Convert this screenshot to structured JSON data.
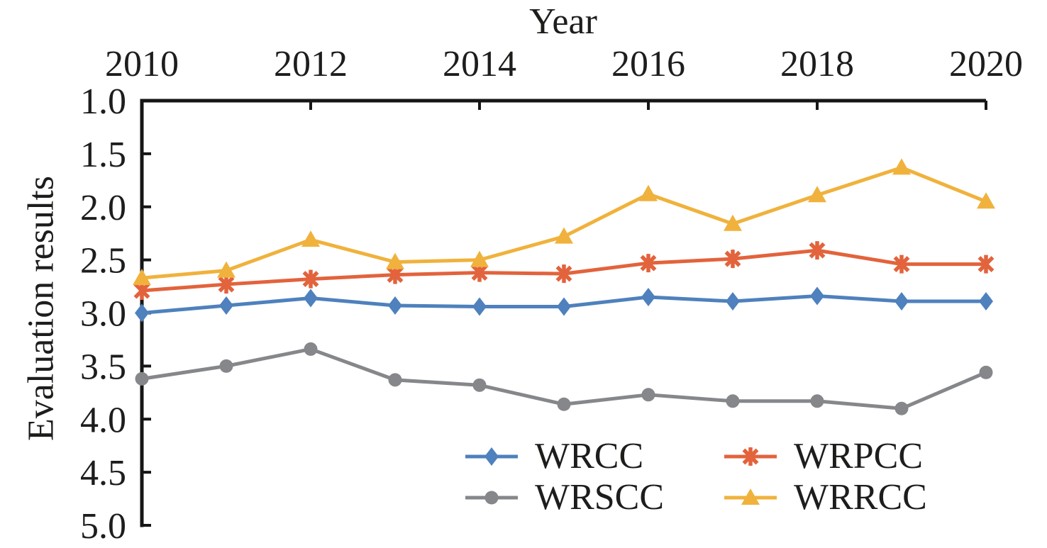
{
  "chart_data": {
    "type": "line",
    "title": "Year",
    "xlabel": "Year",
    "ylabel": "Evaluation results",
    "x": [
      2010,
      2011,
      2012,
      2013,
      2014,
      2015,
      2016,
      2017,
      2018,
      2019,
      2020
    ],
    "xlim": [
      2010,
      2020
    ],
    "x_tick_values": [
      2010,
      2012,
      2014,
      2016,
      2018,
      2020
    ],
    "x_tick_labels": [
      "2010",
      "2012",
      "2014",
      "2016",
      "2018",
      "2020"
    ],
    "x_axis_position": "top",
    "ylim": [
      1.0,
      5.0
    ],
    "y_axis_inverted": true,
    "y_tick_values": [
      1.0,
      1.5,
      2.0,
      2.5,
      3.0,
      3.5,
      4.0,
      4.5,
      5.0
    ],
    "y_tick_labels": [
      "1.0",
      "1.5",
      "2.0",
      "2.5",
      "3.0",
      "3.5",
      "4.0",
      "4.5",
      "5.0"
    ],
    "grid": false,
    "legend_position": "inside-bottom-center",
    "legend_rows": [
      [
        "WRCC",
        "WRPCC"
      ],
      [
        "WRSCC",
        "WRRCC"
      ]
    ],
    "series": [
      {
        "name": "WRCC",
        "color": "#4E81BD",
        "marker": "diamond",
        "values": [
          3.0,
          2.93,
          2.86,
          2.93,
          2.94,
          2.94,
          2.85,
          2.89,
          2.84,
          2.89,
          2.89
        ]
      },
      {
        "name": "WRPCC",
        "color": "#E2633C",
        "marker": "asterisk",
        "values": [
          2.79,
          2.73,
          2.68,
          2.64,
          2.62,
          2.63,
          2.53,
          2.49,
          2.41,
          2.54,
          2.54
        ]
      },
      {
        "name": "WRSCC",
        "color": "#85878A",
        "marker": "circle",
        "values": [
          3.62,
          3.5,
          3.34,
          3.63,
          3.68,
          3.86,
          3.77,
          3.83,
          3.83,
          3.9,
          3.56
        ]
      },
      {
        "name": "WRRCC",
        "color": "#F0B23C",
        "marker": "triangle",
        "values": [
          2.67,
          2.6,
          2.31,
          2.52,
          2.5,
          2.28,
          1.88,
          2.16,
          1.89,
          1.63,
          1.95
        ]
      }
    ],
    "axis_color": "#161616",
    "text_color": "#1d1d1b"
  }
}
